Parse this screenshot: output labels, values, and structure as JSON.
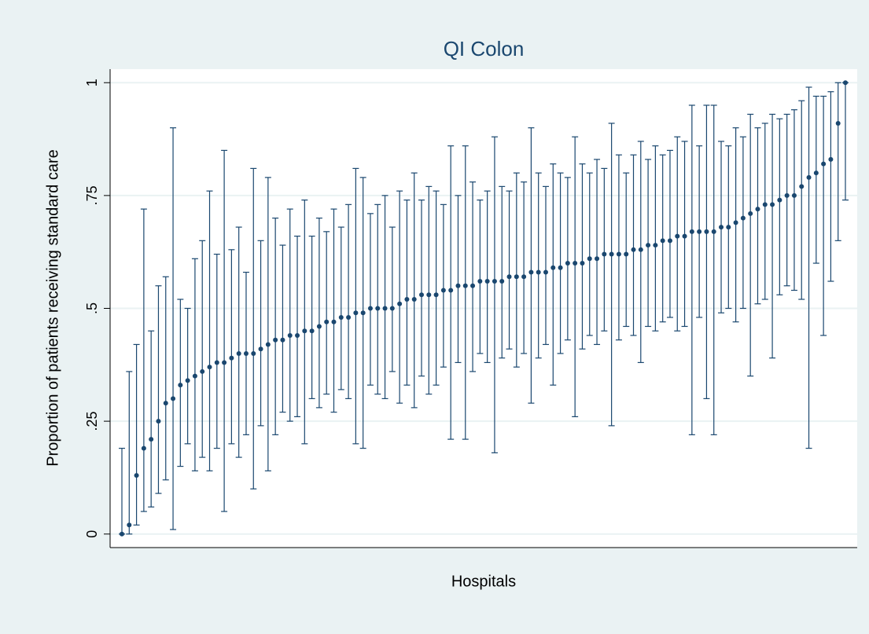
{
  "chart_data": {
    "type": "errorbar",
    "title": "QI Colon",
    "y_label": "Proportion of patients receiving standard care",
    "x_label": "Hospitals",
    "color": "#1a476f",
    "grid": true,
    "ylim": [
      -0.03,
      1.03
    ],
    "yticks": [
      0,
      {
        "value": 0.25,
        "label": ".25"
      },
      {
        "value": 0.5,
        "label": ".5"
      },
      {
        "value": 0.75,
        "label": ".75"
      },
      1
    ],
    "values": [
      0,
      0.02,
      0.13,
      0.19,
      0.21,
      0.25,
      0.29,
      0.3,
      0.33,
      0.34,
      0.35,
      0.36,
      0.37,
      0.38,
      0.38,
      0.39,
      0.4,
      0.4,
      0.4,
      0.41,
      0.42,
      0.43,
      0.43,
      0.44,
      0.44,
      0.45,
      0.45,
      0.46,
      0.47,
      0.47,
      0.48,
      0.48,
      0.49,
      0.49,
      0.5,
      0.5,
      0.5,
      0.5,
      0.51,
      0.52,
      0.52,
      0.53,
      0.53,
      0.53,
      0.54,
      0.54,
      0.55,
      0.55,
      0.55,
      0.56,
      0.56,
      0.56,
      0.56,
      0.57,
      0.57,
      0.57,
      0.58,
      0.58,
      0.58,
      0.59,
      0.59,
      0.6,
      0.6,
      0.6,
      0.61,
      0.61,
      0.62,
      0.62,
      0.62,
      0.62,
      0.63,
      0.63,
      0.64,
      0.64,
      0.65,
      0.65,
      0.66,
      0.66,
      0.67,
      0.67,
      0.67,
      0.67,
      0.68,
      0.68,
      0.69,
      0.7,
      0.71,
      0.72,
      0.73,
      0.73,
      0.74,
      0.75,
      0.75,
      0.77,
      0.79,
      0.8,
      0.82,
      0.83,
      0.91,
      1.0
    ],
    "lower": [
      0,
      0,
      0.02,
      0.05,
      0.06,
      0.09,
      0.12,
      0.01,
      0.15,
      0.2,
      0.14,
      0.17,
      0.14,
      0.19,
      0.05,
      0.2,
      0.17,
      0.22,
      0.1,
      0.24,
      0.14,
      0.22,
      0.27,
      0.25,
      0.26,
      0.2,
      0.3,
      0.28,
      0.31,
      0.27,
      0.32,
      0.3,
      0.2,
      0.19,
      0.33,
      0.31,
      0.3,
      0.36,
      0.29,
      0.33,
      0.28,
      0.35,
      0.31,
      0.33,
      0.37,
      0.21,
      0.38,
      0.21,
      0.36,
      0.4,
      0.38,
      0.18,
      0.39,
      0.41,
      0.37,
      0.4,
      0.29,
      0.39,
      0.42,
      0.33,
      0.4,
      0.43,
      0.26,
      0.41,
      0.44,
      0.42,
      0.45,
      0.24,
      0.43,
      0.46,
      0.44,
      0.38,
      0.46,
      0.45,
      0.47,
      0.48,
      0.45,
      0.46,
      0.22,
      0.48,
      0.3,
      0.22,
      0.49,
      0.5,
      0.47,
      0.5,
      0.35,
      0.51,
      0.52,
      0.39,
      0.53,
      0.55,
      0.54,
      0.52,
      0.19,
      0.6,
      0.44,
      0.56,
      0.65,
      0.74
    ],
    "upper": [
      0.19,
      0.36,
      0.42,
      0.72,
      0.45,
      0.55,
      0.57,
      0.9,
      0.52,
      0.5,
      0.61,
      0.65,
      0.76,
      0.62,
      0.85,
      0.63,
      0.68,
      0.58,
      0.81,
      0.65,
      0.79,
      0.7,
      0.64,
      0.72,
      0.66,
      0.74,
      0.66,
      0.7,
      0.67,
      0.72,
      0.68,
      0.73,
      0.81,
      0.79,
      0.71,
      0.73,
      0.75,
      0.68,
      0.76,
      0.74,
      0.8,
      0.74,
      0.77,
      0.76,
      0.73,
      0.86,
      0.75,
      0.86,
      0.78,
      0.74,
      0.76,
      0.88,
      0.77,
      0.76,
      0.8,
      0.78,
      0.9,
      0.8,
      0.77,
      0.82,
      0.8,
      0.79,
      0.88,
      0.82,
      0.8,
      0.83,
      0.81,
      0.91,
      0.84,
      0.8,
      0.84,
      0.87,
      0.83,
      0.86,
      0.84,
      0.85,
      0.88,
      0.87,
      0.95,
      0.86,
      0.95,
      0.95,
      0.87,
      0.86,
      0.9,
      0.88,
      0.93,
      0.9,
      0.91,
      0.93,
      0.92,
      0.93,
      0.94,
      0.96,
      0.99,
      0.97,
      0.97,
      0.98,
      1.0,
      1.0
    ]
  }
}
